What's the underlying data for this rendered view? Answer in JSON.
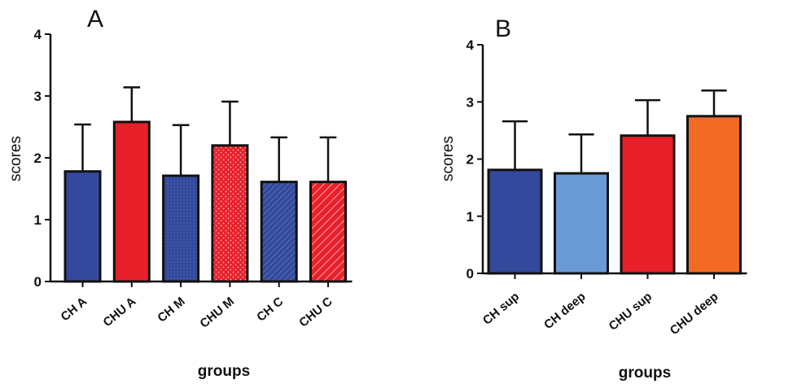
{
  "colors": {
    "blue": "#33499c",
    "red": "#e8202a",
    "light_blue": "#6a9bd6",
    "orange": "#f26a24",
    "outline": "#111111"
  },
  "chart_data": [
    {
      "type": "bar",
      "panel_label": "A",
      "xlabel": "groups",
      "ylabel": "scores",
      "ylim": [
        0,
        4
      ],
      "yticks": [
        "0",
        "1",
        "2",
        "3",
        "4"
      ],
      "categories": [
        "CH A",
        "CHU A",
        "CH M",
        "CHU M",
        "CH C",
        "CHU C"
      ],
      "values": [
        1.78,
        2.58,
        1.71,
        2.2,
        1.61,
        1.61
      ],
      "errors": [
        0.76,
        0.56,
        0.82,
        0.71,
        0.72,
        0.72
      ],
      "colors": [
        "#33499c",
        "#e8202a",
        "#33499c",
        "#e8202a",
        "#33499c",
        "#e8202a"
      ],
      "patterns": [
        "solid",
        "solid",
        "fine-dots",
        "dots",
        "hatch",
        "hatch"
      ],
      "grid": false,
      "error_bars": "upper"
    },
    {
      "type": "bar",
      "panel_label": "B",
      "xlabel": "groups",
      "ylabel": "scores",
      "ylim": [
        0,
        4
      ],
      "yticks": [
        "0",
        "1",
        "2",
        "3",
        "4"
      ],
      "categories": [
        "CH sup",
        "CH deep",
        "CHU sup",
        "CHU deep"
      ],
      "values": [
        1.81,
        1.75,
        2.41,
        2.75
      ],
      "errors": [
        0.85,
        0.68,
        0.62,
        0.45
      ],
      "colors": [
        "#33499c",
        "#6a9bd6",
        "#e8202a",
        "#f26a24"
      ],
      "patterns": [
        "solid",
        "solid",
        "solid",
        "solid"
      ],
      "grid": false,
      "error_bars": "upper"
    }
  ]
}
